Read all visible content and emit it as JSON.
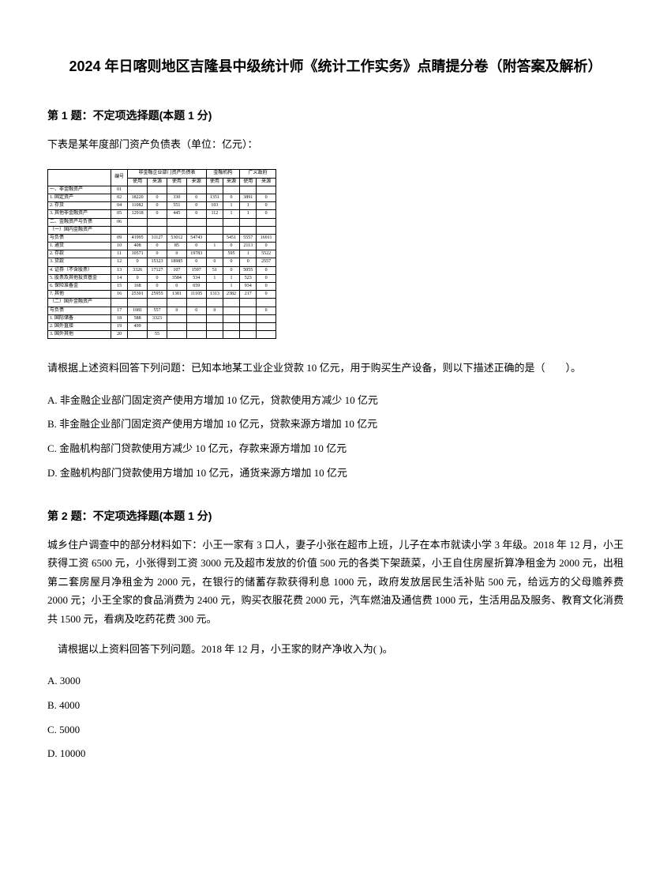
{
  "title": "2024 年日喀则地区吉隆县中级统计师《统计工作实务》点睛提分卷（附答案及解析）",
  "q1": {
    "header": "第 1 题：不定项选择题(本题 1 分)",
    "intro": "下表是某年度部门资产负债表（单位：亿元）：",
    "prompt": "请根据上述资料回答下列问题：已知本地某工业企业贷款 10 亿元，用于购买生产设备，则以下描述正确的是（　　）。",
    "choices": {
      "A": "A. 非金融企业部门固定资产使用方增加 10 亿元，贷款使用方减少 10 亿元",
      "B": "B. 非金融企业部门固定资产使用方增加 10 亿元，贷款来源方增加 10 亿元",
      "C": "C. 金融机构部门贷款使用方减少 10 亿元，存款来源方增加 10 亿元",
      "D": "D. 金融机构部门贷款使用方增加 10 亿元，通货来源方增加 10 亿元"
    }
  },
  "q2": {
    "header": "第 2 题：不定项选择题(本题 1 分)",
    "body": "城乡住户调查中的部分材料如下：小王一家有 3 口人，妻子小张在超市上班，儿子在本市就读小学 3 年级。2018 年 12 月，小王获得工资 6500 元，小张得到工资 3000 元及超市发放的价值 500 元的各类下架蔬菜，小王自住房屋折算净租金为 2000 元，出租第二套房屋月净租金为 2000 元，在银行的储蓄存款获得利息 1000 元，政府发放居民生活补贴 500 元，给远方的父母赡养费 2000 元；小王全家的食品消费为 2400 元，购买衣服花费 2000 元，汽车燃油及通信费 1000 元，生活用品及服务、教育文化消费共 1500 元，看病及吃药花费 300 元。",
    "prompt": "　请根据以上资料回答下列问题。2018 年 12 月，小王家的财产净收入为( )。",
    "choices": {
      "A": "A. 3000",
      "B": "B. 4000",
      "C": "C. 5000",
      "D": "D. 10000"
    }
  },
  "table": {
    "headers": {
      "col_group1": "非金融企业部门资产负债表",
      "col_group2": "金融机构",
      "col_group3": "广义政府",
      "sub": [
        "使用",
        "来源",
        "使用",
        "来源",
        "使用",
        "来源",
        "使用",
        "来源"
      ]
    },
    "rows": [
      {
        "label": "一、非金融资产",
        "code": "01",
        "vals": [
          "",
          "",
          "",
          "",
          "",
          "",
          "",
          ""
        ]
      },
      {
        "label": "1. 固定资产",
        "code": "02",
        "vals": [
          "18220",
          "0",
          "330",
          "0",
          "1351",
          "0",
          "3891",
          "0"
        ]
      },
      {
        "label": "2. 存货",
        "code": "04",
        "vals": [
          "11082",
          "0",
          "551",
          "0",
          "103",
          "1",
          "1",
          "0"
        ]
      },
      {
        "label": "3. 其他非金融资产",
        "code": "05",
        "vals": [
          "12918",
          "0",
          "445",
          "0",
          "112",
          "1",
          "1",
          "0"
        ]
      },
      {
        "label": "二、金融资产与负债",
        "code": "06",
        "vals": [
          "",
          "",
          "",
          "",
          "",
          "",
          "",
          ""
        ]
      },
      {
        "label": "（一）国内金融资产",
        "code": "",
        "vals": [
          "",
          "",
          "",
          "",
          "",
          "",
          "",
          ""
        ]
      },
      {
        "label": "与负债",
        "code": "09",
        "vals": [
          "41995",
          "31127",
          "53012",
          "54743",
          "",
          "5451",
          "5557",
          "16911"
        ]
      },
      {
        "label": "1. 通货",
        "code": "10",
        "vals": [
          "408",
          "0",
          "85",
          "0",
          "1",
          "0",
          "2113",
          "0"
        ]
      },
      {
        "label": "2. 存款",
        "code": "11",
        "vals": [
          "10571",
          "0",
          "0",
          "19783",
          "",
          "595",
          "1",
          "5522"
        ]
      },
      {
        "label": "3. 贷款",
        "code": "12",
        "vals": [
          "0",
          "15323",
          "18985",
          "0",
          "0",
          "0",
          "0",
          "2557"
        ]
      },
      {
        "label": "4. 证券（不含股票）",
        "code": "13",
        "vals": [
          "3326",
          "17127",
          "107",
          "1597",
          "51",
          "0",
          "5055",
          "0"
        ]
      },
      {
        "label": "5. 股票及其他投资基金",
        "code": "14",
        "vals": [
          "0",
          "0",
          "3584",
          "534",
          "1",
          "1",
          "523",
          "0"
        ]
      },
      {
        "label": "6. 保险准备金",
        "code": "15",
        "vals": [
          "168",
          "0",
          "0",
          "659",
          "",
          "1",
          "934",
          "0"
        ]
      },
      {
        "label": "7. 其他",
        "code": "16",
        "vals": [
          "25301",
          "25955",
          "1381",
          "11105",
          "1313",
          "2382",
          "217",
          "0"
        ]
      },
      {
        "label": "（二）国外金融资产",
        "code": "",
        "vals": [
          "",
          "",
          "",
          "",
          "",
          "",
          "",
          ""
        ]
      },
      {
        "label": "与负债",
        "code": "17",
        "vals": [
          "1081",
          "557",
          "0",
          "0",
          "0",
          "",
          "",
          "0"
        ]
      },
      {
        "label": "1. 国际储备",
        "code": "18",
        "vals": [
          "588",
          "3323",
          "",
          "",
          "",
          "",
          "",
          ""
        ]
      },
      {
        "label": "2. 国外直接",
        "code": "19",
        "vals": [
          "499",
          "",
          "",
          "",
          "",
          "",
          "",
          ""
        ]
      },
      {
        "label": "3. 国外其他",
        "code": "20",
        "vals": [
          "",
          "55",
          "",
          "",
          "",
          "",
          "",
          ""
        ]
      }
    ]
  },
  "colors": {
    "text": "#000000",
    "background": "#ffffff",
    "border": "#000000"
  }
}
